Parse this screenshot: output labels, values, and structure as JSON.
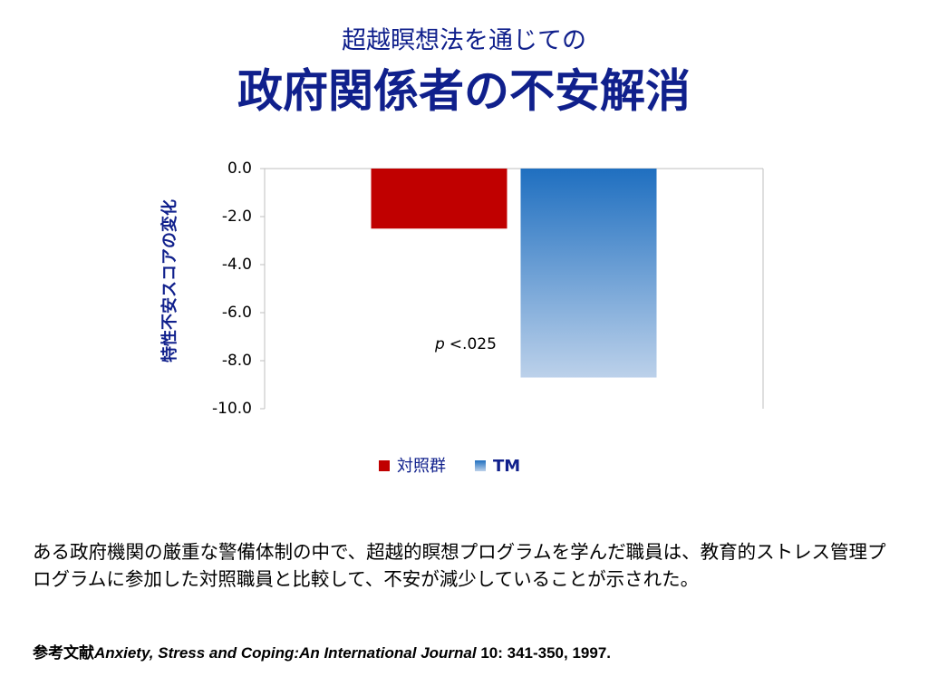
{
  "chart_data": {
    "type": "bar",
    "subtitle": "超越瞑想法を通じての",
    "title": "政府関係者の不安解消",
    "y_label": "特性不安スコアの変化",
    "categories": [
      null
    ],
    "series": [
      {
        "name": "対照群",
        "color": "#c00000",
        "values": [
          -2.5
        ]
      },
      {
        "name": "TM",
        "color": "#1f6fc0",
        "values": [
          -8.7
        ]
      }
    ],
    "ylim": [
      -10,
      0
    ],
    "yticks": [
      {
        "value": 0,
        "label": "0.0"
      },
      {
        "value": -2,
        "label": "-2.0"
      },
      {
        "value": -4,
        "label": "-4.0"
      },
      {
        "value": -6,
        "label": "-6.0"
      },
      {
        "value": -8,
        "label": "-8.0"
      },
      {
        "value": -10,
        "label": "-10.0"
      }
    ],
    "annotation": [
      "p",
      "<.025"
    ],
    "legend": "bottom"
  },
  "body": "ある政府機関の厳重な警備体制の中で、超越的瞑想プログラムを学んだ職員は、教育的ストレス管理プログラムに参加した対照職員と比較して、不安が減少していることが示された。",
  "reference": {
    "label": "参考文献",
    "journal": "Anxiety, Stress and Coping:An International Journal",
    "citation": "10: 341-350, 1997."
  }
}
